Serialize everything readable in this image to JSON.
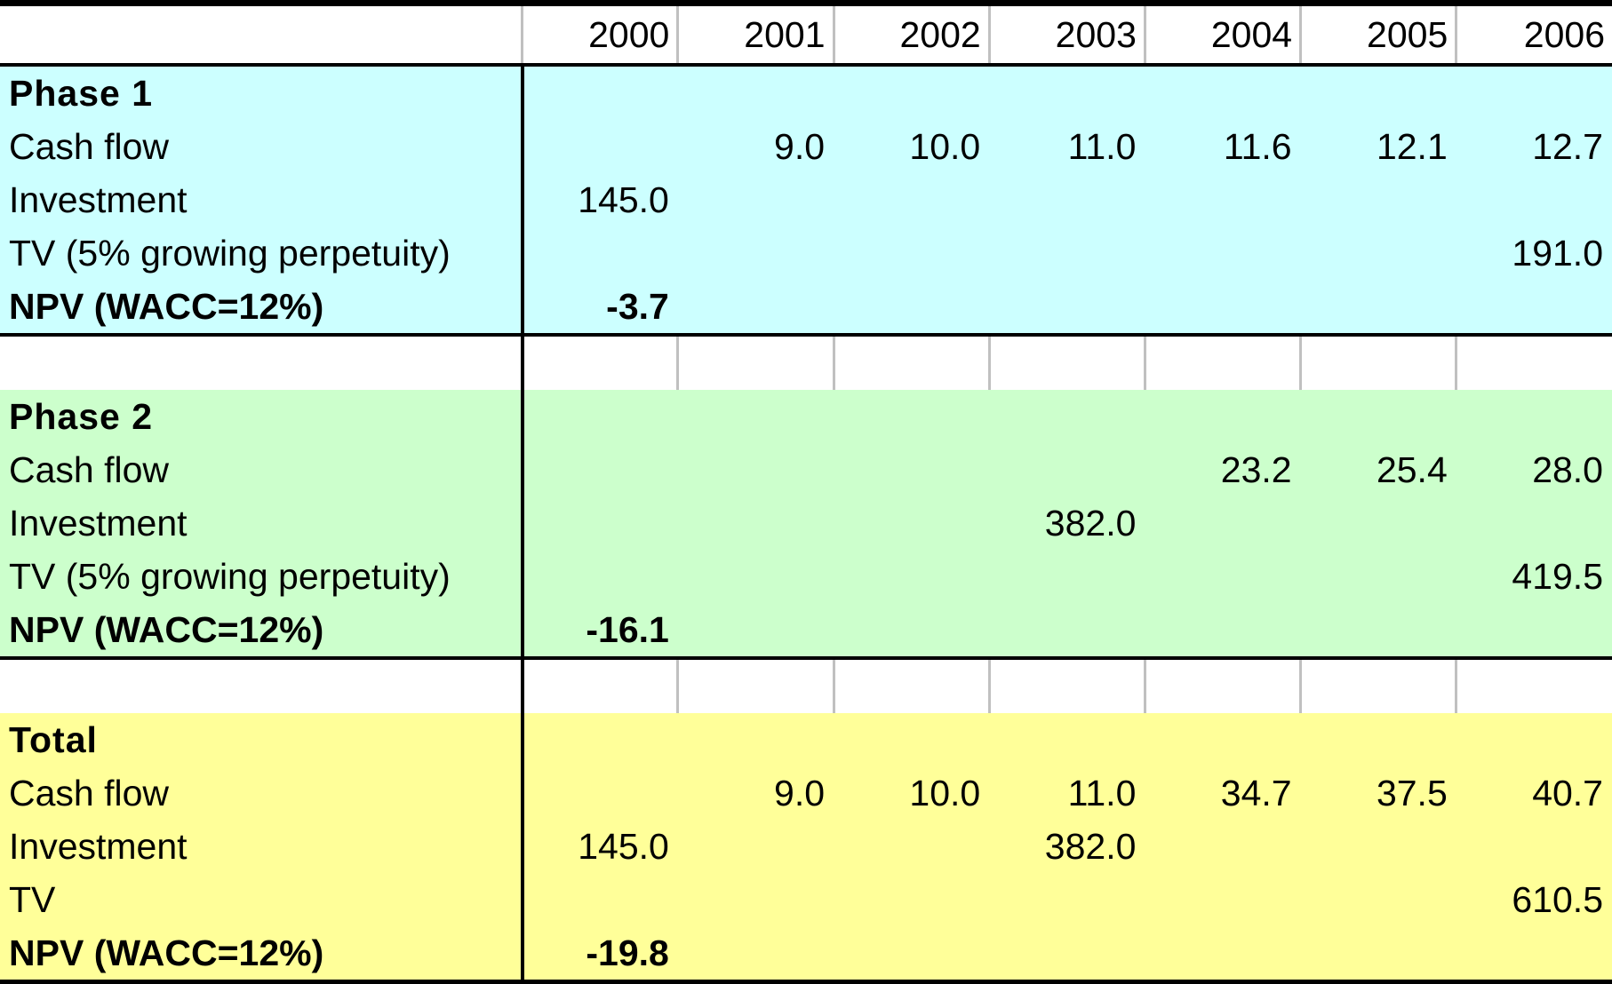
{
  "years": [
    "2000",
    "2001",
    "2002",
    "2003",
    "2004",
    "2005",
    "2006"
  ],
  "colors": {
    "phase1": "#ccffff",
    "phase2": "#ccffcc",
    "total": "#ffff99"
  },
  "phase1": {
    "title": "Phase 1",
    "cash_flow": {
      "label": "Cash flow",
      "values": [
        "",
        "9.0",
        "10.0",
        "11.0",
        "11.6",
        "12.1",
        "12.7"
      ]
    },
    "investment": {
      "label": "Investment",
      "values": [
        "145.0",
        "",
        "",
        "",
        "",
        "",
        ""
      ]
    },
    "tv": {
      "label": "TV (5% growing perpetuity)",
      "values": [
        "",
        "",
        "",
        "",
        "",
        "",
        "191.0"
      ]
    },
    "npv": {
      "label": "NPV (WACC=12%)",
      "value": "-3.7"
    }
  },
  "phase2": {
    "title": "Phase 2",
    "cash_flow": {
      "label": "Cash flow",
      "values": [
        "",
        "",
        "",
        "",
        "23.2",
        "25.4",
        "28.0"
      ]
    },
    "investment": {
      "label": "Investment",
      "values": [
        "",
        "",
        "",
        "382.0",
        "",
        "",
        ""
      ]
    },
    "tv": {
      "label": "TV (5% growing perpetuity)",
      "values": [
        "",
        "",
        "",
        "",
        "",
        "",
        "419.5"
      ]
    },
    "npv": {
      "label": "NPV (WACC=12%)",
      "value": "-16.1"
    }
  },
  "total": {
    "title": "Total",
    "cash_flow": {
      "label": "Cash flow",
      "values": [
        "",
        "9.0",
        "10.0",
        "11.0",
        "34.7",
        "37.5",
        "40.7"
      ]
    },
    "investment": {
      "label": "Investment",
      "values": [
        "145.0",
        "",
        "",
        "382.0",
        "",
        "",
        ""
      ]
    },
    "tv": {
      "label": "TV",
      "values": [
        "",
        "",
        "",
        "",
        "",
        "",
        "610.5"
      ]
    },
    "npv": {
      "label": "NPV (WACC=12%)",
      "value": "-19.8"
    }
  }
}
